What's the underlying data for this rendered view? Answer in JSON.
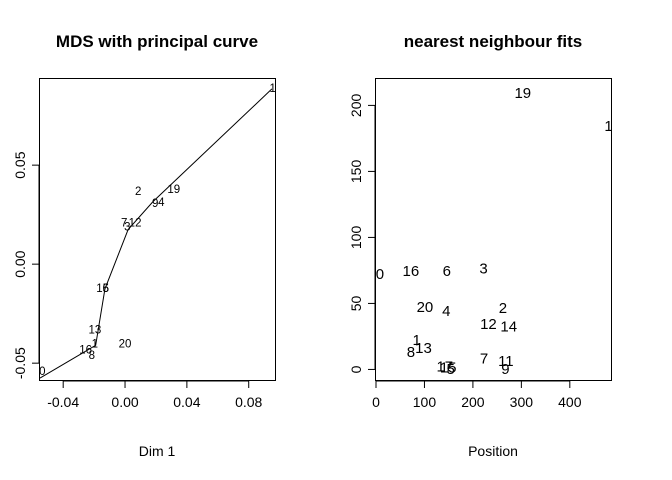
{
  "chart_data": [
    {
      "type": "scatter",
      "title": "MDS with principal curve",
      "xlabel": "Dim 1",
      "ylabel": "",
      "xlim": [
        -0.055,
        0.097
      ],
      "ylim": [
        -0.0585,
        0.0935
      ],
      "xticks": [
        -0.04,
        0.0,
        0.04,
        0.08
      ],
      "xtick_labels": [
        "-0.04",
        "0.00",
        "0.04",
        "0.08"
      ],
      "yticks": [
        -0.05,
        0.0,
        0.05
      ],
      "ytick_labels": [
        "-0.05",
        "0.00",
        "0.05"
      ],
      "points": [
        {
          "label": "0",
          "x": -0.0535,
          "y": -0.0545
        },
        {
          "label": "1",
          "x": 0.0955,
          "y": 0.0885
        },
        {
          "label": "2",
          "x": 0.0085,
          "y": 0.0365
        },
        {
          "label": "19",
          "x": 0.0315,
          "y": 0.0375
        },
        {
          "label": "9",
          "x": 0.0195,
          "y": 0.0305
        },
        {
          "label": "4",
          "x": 0.0235,
          "y": 0.031
        },
        {
          "label": "7",
          "x": -0.0005,
          "y": 0.0205
        },
        {
          "label": "12",
          "x": 0.0065,
          "y": 0.0205
        },
        {
          "label": "3",
          "x": 0.0015,
          "y": 0.0185
        },
        {
          "label": "15",
          "x": -0.0145,
          "y": -0.0125
        },
        {
          "label": "6",
          "x": -0.0125,
          "y": -0.0125
        },
        {
          "label": "13",
          "x": -0.0195,
          "y": -0.0335
        },
        {
          "label": "16",
          "x": -0.0255,
          "y": -0.0435
        },
        {
          "label": "1",
          "x": -0.0195,
          "y": -0.0405
        },
        {
          "label": "8",
          "x": -0.0215,
          "y": -0.0465
        },
        {
          "label": "20",
          "x": 0.0,
          "y": -0.0405
        }
      ],
      "curve": [
        {
          "x": -0.055,
          "y": -0.0575
        },
        {
          "x": -0.019,
          "y": -0.041
        },
        {
          "x": -0.013,
          "y": -0.0125
        },
        {
          "x": 0.002,
          "y": 0.0175
        },
        {
          "x": 0.018,
          "y": 0.0315
        },
        {
          "x": 0.095,
          "y": 0.0885
        }
      ]
    },
    {
      "type": "scatter",
      "title": "nearest neighbour fits",
      "xlabel": "Position",
      "ylabel": "",
      "xlim": [
        0,
        485
      ],
      "ylim": [
        -8,
        220
      ],
      "xticks": [
        0,
        100,
        200,
        300,
        400
      ],
      "xtick_labels": [
        "0",
        "100",
        "200",
        "300",
        "400"
      ],
      "yticks": [
        0,
        50,
        100,
        150,
        200
      ],
      "ytick_labels": [
        "0",
        "50",
        "100",
        "150",
        "200"
      ],
      "points": [
        {
          "label": "0",
          "x": 8,
          "y": 72
        },
        {
          "label": "19",
          "x": 303,
          "y": 209
        },
        {
          "label": "1",
          "x": 480,
          "y": 184
        },
        {
          "label": "16",
          "x": 72,
          "y": 74
        },
        {
          "label": "6",
          "x": 146,
          "y": 74
        },
        {
          "label": "3",
          "x": 222,
          "y": 76
        },
        {
          "label": "20",
          "x": 101,
          "y": 47
        },
        {
          "label": "4",
          "x": 145,
          "y": 44
        },
        {
          "label": "2",
          "x": 262,
          "y": 46
        },
        {
          "label": "12",
          "x": 232,
          "y": 34
        },
        {
          "label": "14",
          "x": 274,
          "y": 32
        },
        {
          "label": "1",
          "x": 84,
          "y": 22
        },
        {
          "label": "8",
          "x": 72,
          "y": 13
        },
        {
          "label": "13",
          "x": 98,
          "y": 16
        },
        {
          "label": "17",
          "x": 142,
          "y": 2
        },
        {
          "label": "15",
          "x": 149,
          "y": 1
        },
        {
          "label": "5",
          "x": 154,
          "y": 0
        },
        {
          "label": "7",
          "x": 223,
          "y": 8
        },
        {
          "label": "11",
          "x": 268,
          "y": 6
        },
        {
          "label": "9",
          "x": 267,
          "y": 0
        }
      ]
    }
  ]
}
